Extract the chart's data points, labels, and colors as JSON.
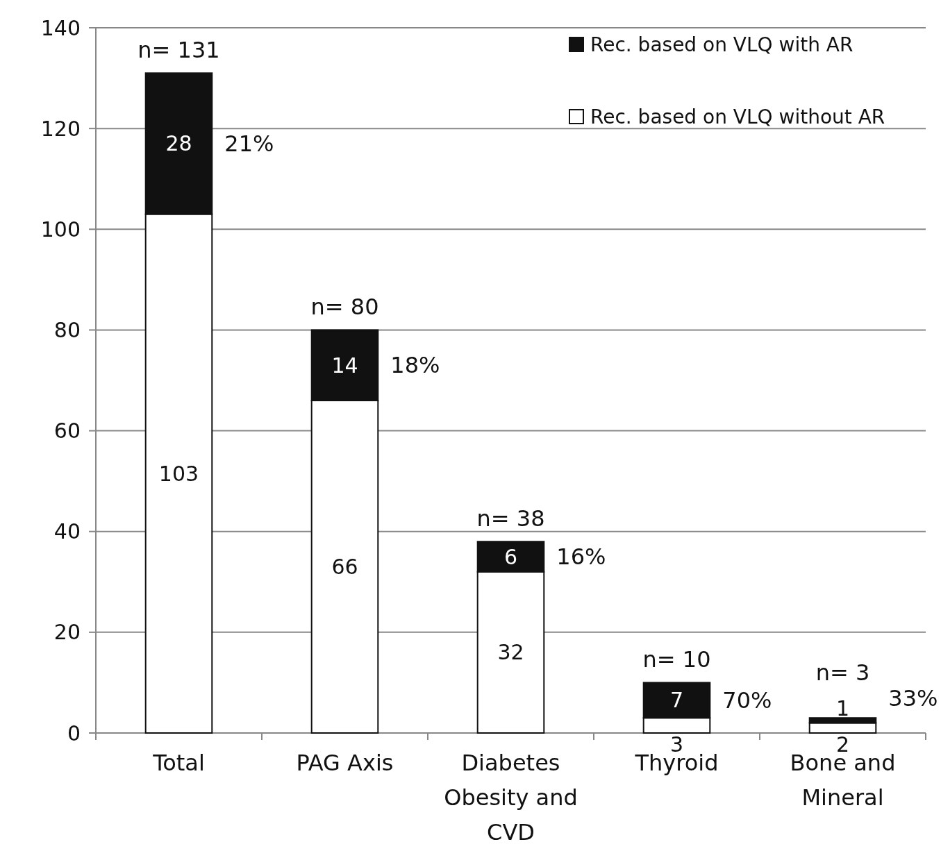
{
  "chart_data": {
    "type": "bar",
    "stacked": true,
    "categories": [
      "Total",
      "PAG Axis",
      "Diabetes Obesity and CVD",
      "Thyroid",
      "Bone and Mineral"
    ],
    "series": [
      {
        "name": "Rec. based on VLQ without AR",
        "color": "#ffffff",
        "values": [
          103,
          66,
          32,
          3,
          2
        ]
      },
      {
        "name": "Rec. based on VLQ with AR",
        "color": "#111111",
        "values": [
          28,
          14,
          6,
          7,
          1
        ]
      }
    ],
    "ylim": [
      0,
      140
    ],
    "yticks": [
      0,
      20,
      40,
      60,
      80,
      100,
      120,
      140
    ],
    "grid": "y",
    "legend": "top right",
    "data_labels": true,
    "totals": [
      "n= 131",
      "n= 80",
      "n= 38",
      "n= 10",
      "n= 3"
    ],
    "annotations": [
      "21%",
      "18%",
      "16%",
      "70%",
      "33%"
    ]
  }
}
